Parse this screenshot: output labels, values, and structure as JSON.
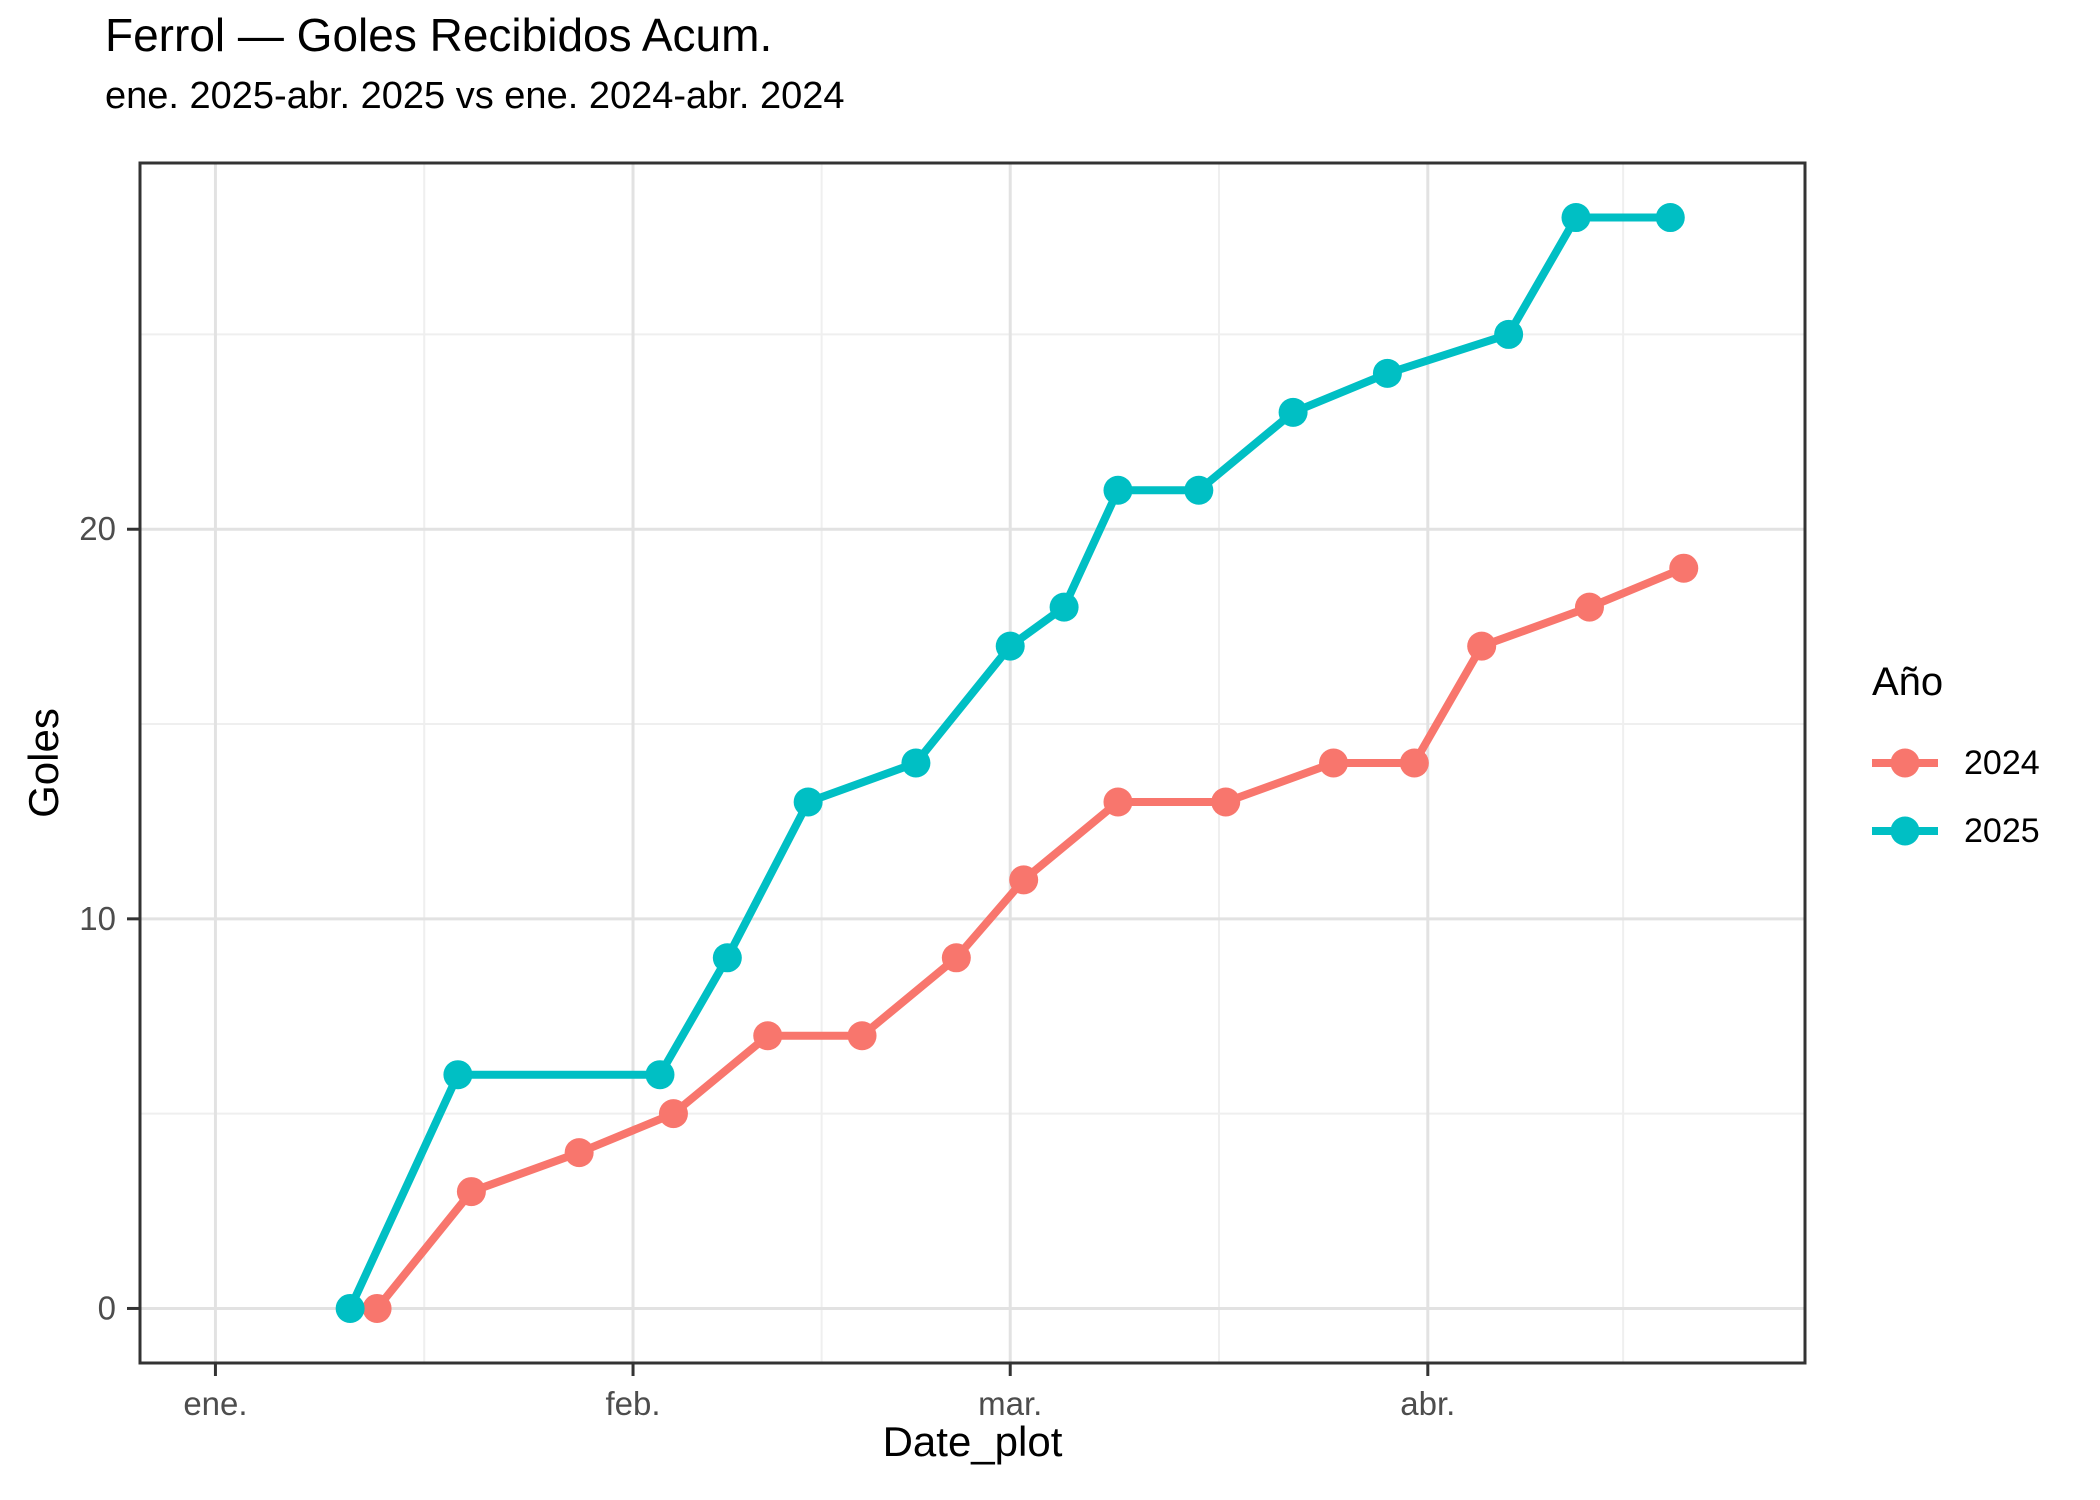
{
  "chart_data": {
    "type": "line",
    "title": "Ferrol — Goles Recibidos Acum.",
    "subtitle": "ene. 2025-abr. 2025 vs ene. 2024-abr. 2024",
    "xlabel": "Date_plot",
    "ylabel": "Goles",
    "x_unit_note": "x encoded as days since Jan 1: ene.=0, feb.=31, mar.=59, abr.=90",
    "xlim": [
      -5.6,
      118
    ],
    "ylim": [
      -1.4,
      29.4
    ],
    "grid": "major+minor",
    "x_ticks": [
      {
        "label": "ene.",
        "day": 0
      },
      {
        "label": "feb.",
        "day": 31
      },
      {
        "label": "mar.",
        "day": 59
      },
      {
        "label": "abr.",
        "day": 90
      }
    ],
    "x_minor": [
      15.5,
      45,
      74.5,
      104.5
    ],
    "y_ticks": [
      {
        "label": "0",
        "value": 0
      },
      {
        "label": "10",
        "value": 10
      },
      {
        "label": "20",
        "value": 20
      }
    ],
    "y_minor": [
      5,
      15,
      25
    ],
    "legend": {
      "title": "Año",
      "position": "right",
      "items": [
        {
          "label": "2024",
          "color": "#F8766D"
        },
        {
          "label": "2025",
          "color": "#00BFC4"
        }
      ]
    },
    "series": [
      {
        "name": "2024",
        "color": "#F8766D",
        "x_days": [
          12,
          19,
          27,
          34,
          41,
          48,
          55,
          60,
          67,
          75,
          83,
          89,
          94,
          102,
          109
        ],
        "values": [
          0,
          3,
          4,
          5,
          7,
          7,
          9,
          11,
          13,
          13,
          14,
          14,
          17,
          18,
          19
        ]
      },
      {
        "name": "2025",
        "color": "#00BFC4",
        "x_days": [
          10,
          18,
          33,
          38,
          44,
          52,
          59,
          63,
          67,
          73,
          80,
          87,
          96,
          101,
          108
        ],
        "values": [
          0,
          6,
          6,
          9,
          13,
          14,
          17,
          18,
          21,
          21,
          23,
          24,
          25,
          28,
          28
        ]
      }
    ]
  },
  "styles": {
    "background": "#ffffff",
    "panel_border": "#333333",
    "tick_color": "#333333",
    "tick_label_color": "#4d4d4d",
    "grid_major": "#e2e2e2",
    "grid_minor": "#efefef",
    "point_radius": 14.5,
    "line_width": 8
  }
}
